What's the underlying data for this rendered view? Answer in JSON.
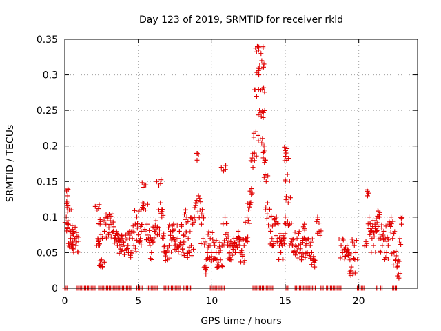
{
  "chart_data": {
    "type": "scatter",
    "title": "Day 123 of 2019, SRMTID for receiver rkld",
    "xlabel": "GPS time / hours",
    "ylabel": "SRMTID / TECUs",
    "xlim": [
      0,
      24
    ],
    "ylim": [
      0,
      0.35
    ],
    "x_ticks": [
      0,
      5,
      10,
      15,
      20
    ],
    "x_tick_labels": [
      "0",
      "5",
      "10",
      "15",
      "20"
    ],
    "y_ticks": [
      0,
      0.05,
      0.1,
      0.15,
      0.2,
      0.25,
      0.3,
      0.35
    ],
    "y_tick_labels": [
      "0",
      "0.05",
      "0.1",
      "0.15",
      "0.2",
      "0.25",
      "0.3",
      "0.35"
    ],
    "grid": true,
    "marker": "+",
    "series_color": "#e00000",
    "series": [
      {
        "name": "SRMTID",
        "points": [
          [
            0.1,
            0.1
          ],
          [
            0.15,
            0.12
          ],
          [
            0.2,
            0.13
          ],
          [
            0.25,
            0.09
          ],
          [
            0.3,
            0.11
          ],
          [
            0.35,
            0.08
          ],
          [
            0.4,
            0.07
          ],
          [
            0.45,
            0.06
          ],
          [
            0.5,
            0.07
          ],
          [
            0.55,
            0.065
          ],
          [
            0.6,
            0.08
          ],
          [
            0.7,
            0.07
          ],
          [
            0.75,
            0.06
          ],
          [
            0.8,
            0.065
          ],
          [
            2.2,
            0.11
          ],
          [
            2.25,
            0.07
          ],
          [
            2.3,
            0.06
          ],
          [
            2.4,
            0.09
          ],
          [
            2.5,
            0.04
          ],
          [
            2.55,
            0.03
          ],
          [
            2.6,
            0.07
          ],
          [
            2.7,
            0.08
          ],
          [
            2.8,
            0.09
          ],
          [
            2.9,
            0.1
          ],
          [
            3.0,
            0.085
          ],
          [
            3.1,
            0.095
          ],
          [
            3.2,
            0.09
          ],
          [
            3.3,
            0.08
          ],
          [
            3.4,
            0.07
          ],
          [
            3.5,
            0.065
          ],
          [
            3.6,
            0.075
          ],
          [
            3.7,
            0.06
          ],
          [
            3.8,
            0.055
          ],
          [
            3.9,
            0.07
          ],
          [
            4.0,
            0.065
          ],
          [
            4.1,
            0.06
          ],
          [
            4.2,
            0.055
          ],
          [
            4.3,
            0.06
          ],
          [
            4.4,
            0.08
          ],
          [
            4.5,
            0.05
          ],
          [
            4.6,
            0.07
          ],
          [
            4.7,
            0.06
          ],
          [
            4.8,
            0.09
          ],
          [
            4.9,
            0.1
          ],
          [
            5.0,
            0.075
          ],
          [
            5.1,
            0.065
          ],
          [
            5.2,
            0.08
          ],
          [
            5.3,
            0.12
          ],
          [
            5.4,
            0.145
          ],
          [
            5.5,
            0.11
          ],
          [
            5.6,
            0.09
          ],
          [
            5.7,
            0.07
          ],
          [
            5.8,
            0.06
          ],
          [
            5.9,
            0.05
          ],
          [
            6.0,
            0.065
          ],
          [
            6.1,
            0.08
          ],
          [
            6.2,
            0.095
          ],
          [
            6.3,
            0.075
          ],
          [
            6.4,
            0.145
          ],
          [
            6.5,
            0.12
          ],
          [
            6.6,
            0.1
          ],
          [
            6.7,
            0.07
          ],
          [
            6.8,
            0.06
          ],
          [
            6.9,
            0.05
          ],
          [
            7.0,
            0.04
          ],
          [
            7.1,
            0.06
          ],
          [
            7.2,
            0.08
          ],
          [
            7.3,
            0.07
          ],
          [
            7.4,
            0.09
          ],
          [
            7.5,
            0.06
          ],
          [
            7.6,
            0.055
          ],
          [
            7.7,
            0.07
          ],
          [
            7.8,
            0.08
          ],
          [
            7.9,
            0.06
          ],
          [
            8.0,
            0.055
          ],
          [
            8.1,
            0.065
          ],
          [
            8.2,
            0.11
          ],
          [
            8.3,
            0.1
          ],
          [
            8.4,
            0.07
          ],
          [
            8.5,
            0.05
          ],
          [
            8.6,
            0.06
          ],
          [
            8.7,
            0.09
          ],
          [
            8.8,
            0.1
          ],
          [
            8.9,
            0.12
          ],
          [
            9.0,
            0.18
          ],
          [
            9.1,
            0.13
          ],
          [
            9.2,
            0.11
          ],
          [
            9.3,
            0.09
          ],
          [
            9.4,
            0.07
          ],
          [
            9.5,
            0.03
          ],
          [
            9.6,
            0.02
          ],
          [
            9.7,
            0.05
          ],
          [
            9.8,
            0.06
          ],
          [
            9.9,
            0.07
          ],
          [
            10.0,
            0.05
          ],
          [
            10.1,
            0.04
          ],
          [
            10.2,
            0.06
          ],
          [
            10.3,
            0.05
          ],
          [
            10.4,
            0.03
          ],
          [
            10.5,
            0.05
          ],
          [
            10.6,
            0.04
          ],
          [
            10.7,
            0.06
          ],
          [
            10.8,
            0.165
          ],
          [
            10.9,
            0.1
          ],
          [
            11.0,
            0.07
          ],
          [
            11.1,
            0.06
          ],
          [
            11.2,
            0.05
          ],
          [
            11.3,
            0.04
          ],
          [
            11.4,
            0.06
          ],
          [
            11.5,
            0.07
          ],
          [
            11.6,
            0.05
          ],
          [
            11.7,
            0.06
          ],
          [
            11.8,
            0.08
          ],
          [
            11.9,
            0.06
          ],
          [
            12.0,
            0.05
          ],
          [
            12.1,
            0.045
          ],
          [
            12.2,
            0.06
          ],
          [
            12.3,
            0.07
          ],
          [
            12.4,
            0.1
          ],
          [
            12.5,
            0.11
          ],
          [
            12.6,
            0.12
          ],
          [
            12.7,
            0.14
          ],
          [
            12.8,
            0.17
          ],
          [
            12.9,
            0.19
          ],
          [
            13.0,
            0.22
          ],
          [
            13.05,
            0.27
          ],
          [
            13.1,
            0.34
          ],
          [
            13.15,
            0.31
          ],
          [
            13.2,
            0.3
          ],
          [
            13.25,
            0.25
          ],
          [
            13.3,
            0.21
          ],
          [
            13.35,
            0.33
          ],
          [
            13.4,
            0.32
          ],
          [
            13.45,
            0.28
          ],
          [
            13.5,
            0.24
          ],
          [
            13.55,
            0.2
          ],
          [
            13.6,
            0.18
          ],
          [
            13.7,
            0.15
          ],
          [
            13.8,
            0.12
          ],
          [
            13.9,
            0.1
          ],
          [
            14.0,
            0.08
          ],
          [
            14.1,
            0.07
          ],
          [
            14.2,
            0.06
          ],
          [
            14.3,
            0.09
          ],
          [
            14.4,
            0.1
          ],
          [
            14.5,
            0.07
          ],
          [
            14.6,
            0.06
          ],
          [
            14.7,
            0.05
          ],
          [
            14.8,
            0.06
          ],
          [
            14.9,
            0.07
          ],
          [
            15.0,
            0.1
          ],
          [
            15.05,
            0.19
          ],
          [
            15.1,
            0.18
          ],
          [
            15.15,
            0.16
          ],
          [
            15.2,
            0.12
          ],
          [
            15.3,
            0.09
          ],
          [
            15.4,
            0.07
          ],
          [
            15.5,
            0.06
          ],
          [
            15.6,
            0.05
          ],
          [
            15.7,
            0.06
          ],
          [
            15.8,
            0.07
          ],
          [
            15.9,
            0.06
          ],
          [
            16.0,
            0.05
          ],
          [
            16.1,
            0.04
          ],
          [
            16.2,
            0.07
          ],
          [
            16.3,
            0.09
          ],
          [
            16.4,
            0.06
          ],
          [
            16.5,
            0.05
          ],
          [
            16.6,
            0.07
          ],
          [
            16.7,
            0.06
          ],
          [
            16.8,
            0.05
          ],
          [
            16.9,
            0.04
          ],
          [
            17.0,
            0.03
          ],
          [
            17.2,
            0.1
          ],
          [
            17.3,
            0.08
          ],
          [
            18.8,
            0.06
          ],
          [
            18.9,
            0.05
          ],
          [
            19.0,
            0.055
          ],
          [
            19.1,
            0.045
          ],
          [
            19.2,
            0.06
          ],
          [
            19.3,
            0.05
          ],
          [
            19.4,
            0.04
          ],
          [
            19.5,
            0.03
          ],
          [
            19.6,
            0.02
          ],
          [
            19.7,
            0.06
          ],
          [
            19.8,
            0.05
          ],
          [
            20.5,
            0.06
          ],
          [
            20.6,
            0.13
          ],
          [
            20.7,
            0.1
          ],
          [
            20.8,
            0.08
          ],
          [
            20.9,
            0.07
          ],
          [
            21.0,
            0.06
          ],
          [
            21.1,
            0.09
          ],
          [
            21.2,
            0.08
          ],
          [
            21.3,
            0.11
          ],
          [
            21.4,
            0.1
          ],
          [
            21.5,
            0.07
          ],
          [
            21.6,
            0.06
          ],
          [
            21.7,
            0.08
          ],
          [
            21.8,
            0.07
          ],
          [
            21.9,
            0.05
          ],
          [
            22.0,
            0.06
          ],
          [
            22.1,
            0.09
          ],
          [
            22.2,
            0.1
          ],
          [
            22.3,
            0.07
          ],
          [
            22.4,
            0.05
          ],
          [
            22.5,
            0.04
          ],
          [
            22.6,
            0.03
          ],
          [
            22.7,
            0.02
          ],
          [
            22.8,
            0.07
          ],
          [
            22.9,
            0.09
          ]
        ],
        "zero_runs": [
          [
            0.0,
            0.2
          ],
          [
            0.8,
            2.1
          ],
          [
            2.3,
            4.6
          ],
          [
            4.9,
            5.3
          ],
          [
            5.6,
            6.4
          ],
          [
            6.7,
            7.9
          ],
          [
            8.1,
            8.7
          ],
          [
            9.9,
            10.4
          ],
          [
            10.5,
            10.9
          ],
          [
            12.8,
            14.2
          ],
          [
            15.0,
            15.2
          ],
          [
            15.6,
            17.1
          ],
          [
            17.4,
            17.6
          ],
          [
            17.8,
            18.8
          ],
          [
            19.9,
            20.4
          ],
          [
            21.2,
            21.3
          ],
          [
            21.5,
            21.6
          ],
          [
            22.3,
            22.6
          ]
        ]
      }
    ]
  }
}
